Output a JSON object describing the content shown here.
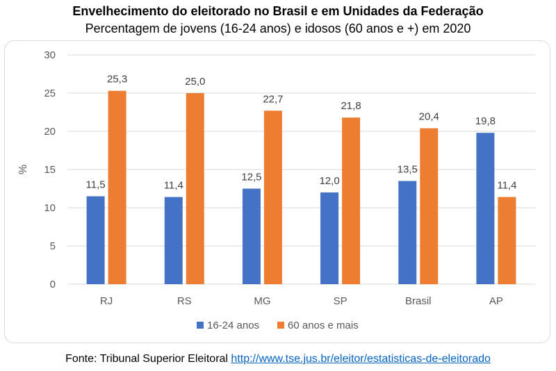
{
  "title": "Envelhecimento do eleitorado no Brasil e em Unidades da Federação",
  "subtitle": "Percentagem de jovens (16-24 anos) e idosos (60 anos e +) em 2020",
  "source": {
    "prefix": "Fonte: Tribunal Superior Eleitoral ",
    "link": "http://www.tse.jus.br/eleitor/estatisticas-de-eleitorado"
  },
  "chart_data": {
    "type": "bar",
    "ylabel": "%",
    "xlabel": "",
    "ylim": [
      0,
      30
    ],
    "yticks": [
      0,
      5,
      10,
      15,
      20,
      25,
      30
    ],
    "categories": [
      "RJ",
      "RS",
      "MG",
      "SP",
      "Brasil",
      "AP"
    ],
    "series": [
      {
        "name": "16-24 anos",
        "color": "#4472c4",
        "values": [
          11.5,
          11.4,
          12.5,
          12.0,
          13.5,
          19.8
        ],
        "labels": [
          "11,5",
          "11,4",
          "12,5",
          "12,0",
          "13,5",
          "19,8"
        ]
      },
      {
        "name": "60 anos e mais",
        "color": "#ed7d31",
        "values": [
          25.3,
          25.0,
          22.7,
          21.8,
          20.4,
          11.4
        ],
        "labels": [
          "25,3",
          "25,0",
          "22,7",
          "21,8",
          "20,4",
          "11,4"
        ]
      }
    ],
    "grid": true,
    "legend": "bottom"
  }
}
